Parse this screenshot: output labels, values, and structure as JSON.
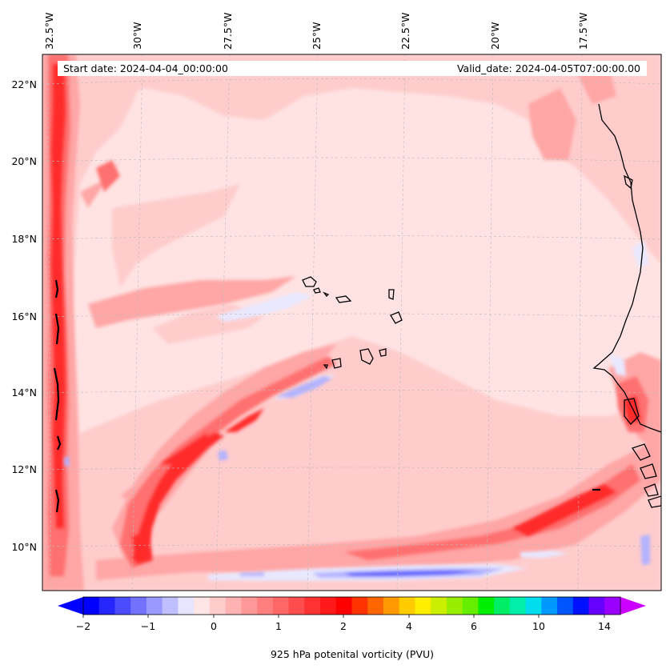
{
  "header": {
    "start_date": "Start date: 2024-04-04_00:00:00",
    "valid_date": "Valid_date: 2024-04-05T07:00:00.00"
  },
  "lon_labels": [
    "32.5°W",
    "30°W",
    "27.5°W",
    "25°W",
    "22.5°W",
    "20°W",
    "17.5°W"
  ],
  "lat_labels": [
    "22°N",
    "20°N",
    "18°N",
    "16°N",
    "14°N",
    "12°N",
    "10°N"
  ],
  "colorbar": {
    "label": "925 hPa potenital vorticity (PVU)",
    "tick_labels": [
      "−2",
      "−1",
      "0",
      "1",
      "2",
      "4",
      "6",
      "10",
      "14"
    ],
    "colors": [
      "#0000ff",
      "#2626ff",
      "#4c4cff",
      "#7272ff",
      "#9999ff",
      "#bfbfff",
      "#e5e5ff",
      "#ffe5e5",
      "#ffcccc",
      "#ffb2b2",
      "#ff9999",
      "#ff7f7f",
      "#ff6666",
      "#ff4c4c",
      "#ff3232",
      "#ff1919",
      "#ff0000",
      "#ff3300",
      "#ff6600",
      "#ff9900",
      "#ffcc00",
      "#ffee00",
      "#ccee00",
      "#99ee00",
      "#66ee00",
      "#00ee00",
      "#00ee66",
      "#00eeaa",
      "#00ddee",
      "#0099ff",
      "#0055ff",
      "#0011ff",
      "#6600ff",
      "#9900ff"
    ],
    "extend_low": "#0000ff",
    "extend_high": "#cc00ff"
  },
  "fill_colors": {
    "background": "#ffe3e3",
    "light": "#ffcccc",
    "medium": "#ffa6a6",
    "strong": "#ff7070",
    "intense": "#ff2a2a",
    "negative_light": "#e8e8ff",
    "negative_medium": "#b3b3ff",
    "negative_strong": "#5a5aff",
    "coast": "#000000"
  }
}
